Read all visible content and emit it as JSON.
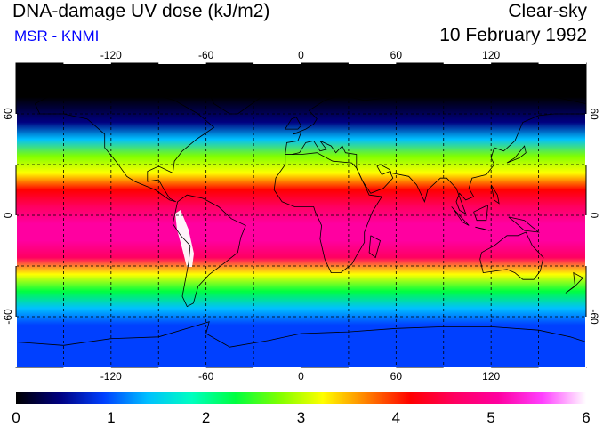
{
  "header": {
    "title": "DNA-damage UV dose (kJ/m2)",
    "source": "MSR - KNMI",
    "condition": "Clear-sky",
    "date": "10 February 1992"
  },
  "map": {
    "lon_ticks": [
      "-120",
      "-60",
      "0",
      "60",
      "120"
    ],
    "lat_ticks": [
      "60",
      "0",
      "-60"
    ],
    "lon_range": [
      -180,
      180
    ],
    "lat_range": [
      -90,
      90
    ],
    "projection": "equirectangular",
    "gridlines": "dashed every 30 degrees"
  },
  "colorbar": {
    "labels": [
      "0",
      "1",
      "2",
      "3",
      "4",
      "5",
      "6"
    ],
    "min": 0,
    "max": 6,
    "colors": [
      "#000000",
      "#000080",
      "#0040ff",
      "#00c0ff",
      "#00ffc0",
      "#00ff40",
      "#80ff00",
      "#ffff00",
      "#ff8000",
      "#ff0000",
      "#ff0060",
      "#ff00a0",
      "#ff40ff",
      "#ffffff"
    ]
  },
  "dose_profile": {
    "description_levels_by_latitude": [
      {
        "lat": 90,
        "dose": 0.0
      },
      {
        "lat": 70,
        "dose": 0.1
      },
      {
        "lat": 55,
        "dose": 0.6
      },
      {
        "lat": 45,
        "dose": 1.6
      },
      {
        "lat": 35,
        "dose": 2.6
      },
      {
        "lat": 25,
        "dose": 3.4
      },
      {
        "lat": 15,
        "dose": 4.2
      },
      {
        "lat": 5,
        "dose": 4.8
      },
      {
        "lat": -5,
        "dose": 5.1
      },
      {
        "lat": -15,
        "dose": 5.2
      },
      {
        "lat": -25,
        "dose": 4.4
      },
      {
        "lat": -35,
        "dose": 3.3
      },
      {
        "lat": -45,
        "dose": 2.3
      },
      {
        "lat": -55,
        "dose": 1.5
      },
      {
        "lat": -65,
        "dose": 1.0
      },
      {
        "lat": -75,
        "dose": 0.9
      },
      {
        "lat": -90,
        "dose": 0.8
      }
    ]
  }
}
